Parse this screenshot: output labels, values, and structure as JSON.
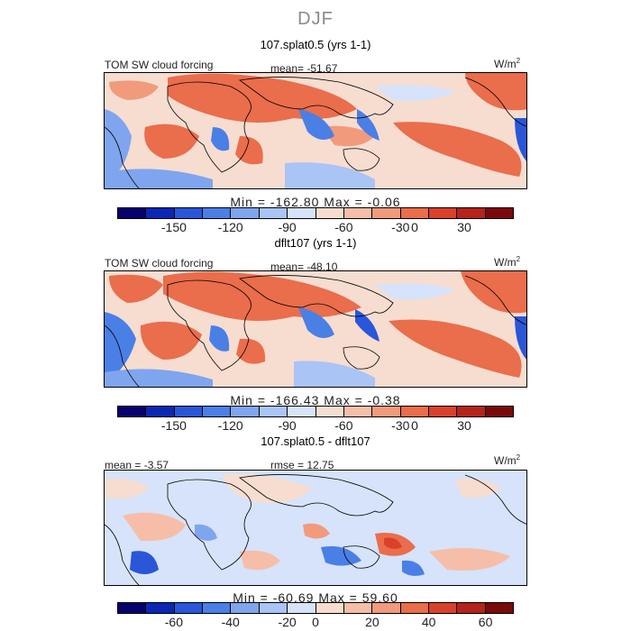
{
  "season": "DJF",
  "colors": {
    "scale": [
      "#08006e",
      "#0b27b4",
      "#2a56d8",
      "#4a7fe6",
      "#7fa5ef",
      "#aac4f5",
      "#d6e3fa",
      "#f6ddd0",
      "#f6bea8",
      "#f29a7c",
      "#ea6d4c",
      "#d9412a",
      "#b5231c",
      "#7a0a0a"
    ]
  },
  "panels": [
    {
      "title": "107.splat0.5 (yrs 1-1)",
      "left_label": "TOM SW cloud forcing",
      "center_label": "mean= -51.67",
      "unit": "W/m",
      "unit_sup": "2",
      "minmax": "Min = -162.80 Max =  -0.06",
      "ticks": [
        "-150",
        "-120",
        "-90",
        "-60",
        "-30",
        "0",
        "30"
      ]
    },
    {
      "title": "dflt107 (yrs 1-1)",
      "left_label": "TOM SW cloud forcing",
      "center_label": "mean= -48.10",
      "unit": "W/m",
      "unit_sup": "2",
      "minmax": "Min = -166.43 Max =  -0.38",
      "ticks": [
        "-150",
        "-120",
        "-90",
        "-60",
        "-30",
        "0",
        "30"
      ]
    },
    {
      "title": "107.splat0.5 - dflt107",
      "left_label": "mean =  -3.57",
      "center_label": "rmse =  12.75",
      "unit": "W/m",
      "unit_sup": "2",
      "minmax": "Min = -60.69 Max =  59.60",
      "ticks": [
        "-60",
        "-40",
        "-20",
        "0",
        "20",
        "40",
        "60"
      ]
    }
  ]
}
